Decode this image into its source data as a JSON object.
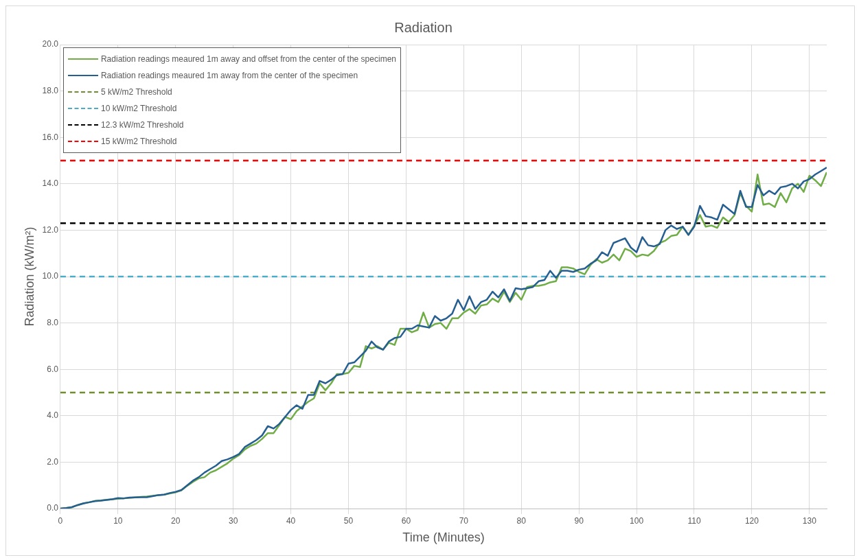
{
  "chart_data": {
    "type": "line",
    "title": "Radiation",
    "xlabel": "Time (Minutes)",
    "ylabel": "Radiation (kW/m²)",
    "xlim": [
      0,
      133
    ],
    "xticks": [
      0,
      10,
      20,
      30,
      40,
      50,
      60,
      70,
      80,
      90,
      100,
      110,
      120,
      130
    ],
    "ylim": [
      0,
      20
    ],
    "yticks": [
      {
        "value": 0,
        "label": "0.0"
      },
      {
        "value": 2,
        "label": "2.0"
      },
      {
        "value": 4,
        "label": "4.0"
      },
      {
        "value": 6,
        "label": "6.0"
      },
      {
        "value": 8,
        "label": "8.0"
      },
      {
        "value": 10,
        "label": "10.0"
      },
      {
        "value": 12,
        "label": "12.0"
      },
      {
        "value": 14,
        "label": "14.0"
      },
      {
        "value": 16,
        "label": "16.0"
      },
      {
        "value": 18,
        "label": "18.0"
      },
      {
        "value": 20,
        "label": "20.0"
      }
    ],
    "grid": true,
    "legend": "top left",
    "marker": "none",
    "line_style": "solid",
    "x": [
      0,
      1,
      2,
      3,
      4,
      5,
      6,
      7,
      8,
      9,
      10,
      11,
      12,
      13,
      14,
      15,
      16,
      17,
      18,
      19,
      20,
      21,
      22,
      23,
      24,
      25,
      26,
      27,
      28,
      29,
      30,
      31,
      32,
      33,
      34,
      35,
      36,
      37,
      38,
      39,
      40,
      41,
      42,
      43,
      44,
      45,
      46,
      47,
      48,
      49,
      50,
      51,
      52,
      53,
      54,
      55,
      56,
      57,
      58,
      59,
      60,
      61,
      62,
      63,
      64,
      65,
      66,
      67,
      68,
      69,
      70,
      71,
      72,
      73,
      74,
      75,
      76,
      77,
      78,
      79,
      80,
      81,
      82,
      83,
      84,
      85,
      86,
      87,
      88,
      89,
      90,
      91,
      92,
      93,
      94,
      95,
      96,
      97,
      98,
      99,
      100,
      101,
      102,
      103,
      104,
      105,
      106,
      107,
      108,
      109,
      110,
      111,
      112,
      113,
      114,
      115,
      116,
      117,
      118,
      119,
      120,
      121,
      122,
      123,
      124,
      125,
      126,
      127,
      128,
      129,
      130,
      131,
      132,
      133
    ],
    "series": [
      {
        "name": "Radiation readings meaured 1m away and offset from the center of the specimen",
        "color": "#70ad47",
        "values": [
          0,
          0.02,
          0.06,
          0.15,
          0.22,
          0.27,
          0.33,
          0.35,
          0.38,
          0.4,
          0.42,
          0.44,
          0.46,
          0.48,
          0.5,
          0.52,
          0.55,
          0.58,
          0.6,
          0.65,
          0.7,
          0.78,
          0.98,
          1.15,
          1.3,
          1.35,
          1.55,
          1.65,
          1.8,
          1.95,
          2.15,
          2.3,
          2.55,
          2.7,
          2.8,
          3.0,
          3.25,
          3.25,
          3.6,
          3.95,
          3.85,
          4.2,
          4.4,
          4.6,
          4.75,
          5.4,
          5.1,
          5.4,
          5.8,
          5.8,
          5.85,
          6.15,
          6.1,
          7.0,
          6.9,
          7.0,
          6.85,
          7.15,
          7.05,
          7.75,
          7.75,
          7.6,
          7.7,
          8.45,
          7.8,
          7.95,
          8.0,
          7.75,
          8.2,
          8.2,
          8.45,
          8.6,
          8.4,
          8.75,
          8.8,
          9.05,
          8.9,
          9.35,
          8.9,
          9.3,
          9.0,
          9.55,
          9.6,
          9.6,
          9.65,
          9.75,
          9.8,
          10.4,
          10.4,
          10.35,
          10.2,
          10.1,
          10.5,
          10.75,
          10.6,
          10.7,
          10.95,
          10.7,
          11.2,
          11.1,
          10.85,
          10.95,
          10.9,
          11.1,
          11.45,
          11.55,
          11.75,
          11.8,
          12.15,
          11.8,
          12.2,
          12.65,
          12.15,
          12.2,
          12.1,
          12.55,
          12.35,
          12.65,
          13.6,
          13.05,
          12.8,
          14.4,
          13.1,
          13.15,
          13.0,
          13.6,
          13.2,
          13.8,
          14.0,
          13.65,
          14.35,
          14.15,
          13.9,
          14.5
        ]
      },
      {
        "name": "Radiation readings meaured 1m away from the center of the specimen",
        "color": "#255e91",
        "values": [
          0,
          0.02,
          0.06,
          0.15,
          0.22,
          0.27,
          0.32,
          0.34,
          0.37,
          0.4,
          0.45,
          0.44,
          0.47,
          0.48,
          0.49,
          0.49,
          0.53,
          0.58,
          0.6,
          0.67,
          0.72,
          0.8,
          1.0,
          1.2,
          1.35,
          1.55,
          1.7,
          1.85,
          2.05,
          2.12,
          2.22,
          2.35,
          2.65,
          2.8,
          2.95,
          3.15,
          3.55,
          3.45,
          3.65,
          3.95,
          4.25,
          4.45,
          4.3,
          4.9,
          4.9,
          5.5,
          5.4,
          5.55,
          5.75,
          5.8,
          6.25,
          6.3,
          6.55,
          6.8,
          7.2,
          6.95,
          6.85,
          7.2,
          7.35,
          7.4,
          7.75,
          7.75,
          7.9,
          7.85,
          7.8,
          8.3,
          8.1,
          8.2,
          8.4,
          9.0,
          8.55,
          9.15,
          8.6,
          8.9,
          9.0,
          9.35,
          9.1,
          9.45,
          8.95,
          9.5,
          9.45,
          9.5,
          9.55,
          9.8,
          9.85,
          10.25,
          9.95,
          10.25,
          10.25,
          10.2,
          10.3,
          10.35,
          10.55,
          10.7,
          11.05,
          10.9,
          11.45,
          11.55,
          11.65,
          11.25,
          11.05,
          11.7,
          11.35,
          11.3,
          11.4,
          12.0,
          12.2,
          12.05,
          12.15,
          11.8,
          12.15,
          13.05,
          12.6,
          12.55,
          12.45,
          13.1,
          12.9,
          12.7,
          13.7,
          13.0,
          13.0,
          13.95,
          13.5,
          13.7,
          13.55,
          13.85,
          13.9,
          14.0,
          13.8,
          14.1,
          14.2,
          14.4,
          14.55,
          14.7
        ]
      }
    ],
    "ref_lines": [
      {
        "axis": "y",
        "value": 5,
        "label": "5 kW/m2 Threshold",
        "color": "#6f8f2f",
        "line_style": "dashed"
      },
      {
        "axis": "y",
        "value": 10,
        "label": "10 kW/m2 Threshold",
        "color": "#4bacc6",
        "line_style": "dashed"
      },
      {
        "axis": "y",
        "value": 12.3,
        "label": "12.3 kW/m2 Threshold",
        "color": "#000000",
        "line_style": "dashed"
      },
      {
        "axis": "y",
        "value": 15,
        "label": "15 kW/m2 Threshold",
        "color": "#ff0000",
        "line_style": "dashed"
      }
    ]
  }
}
